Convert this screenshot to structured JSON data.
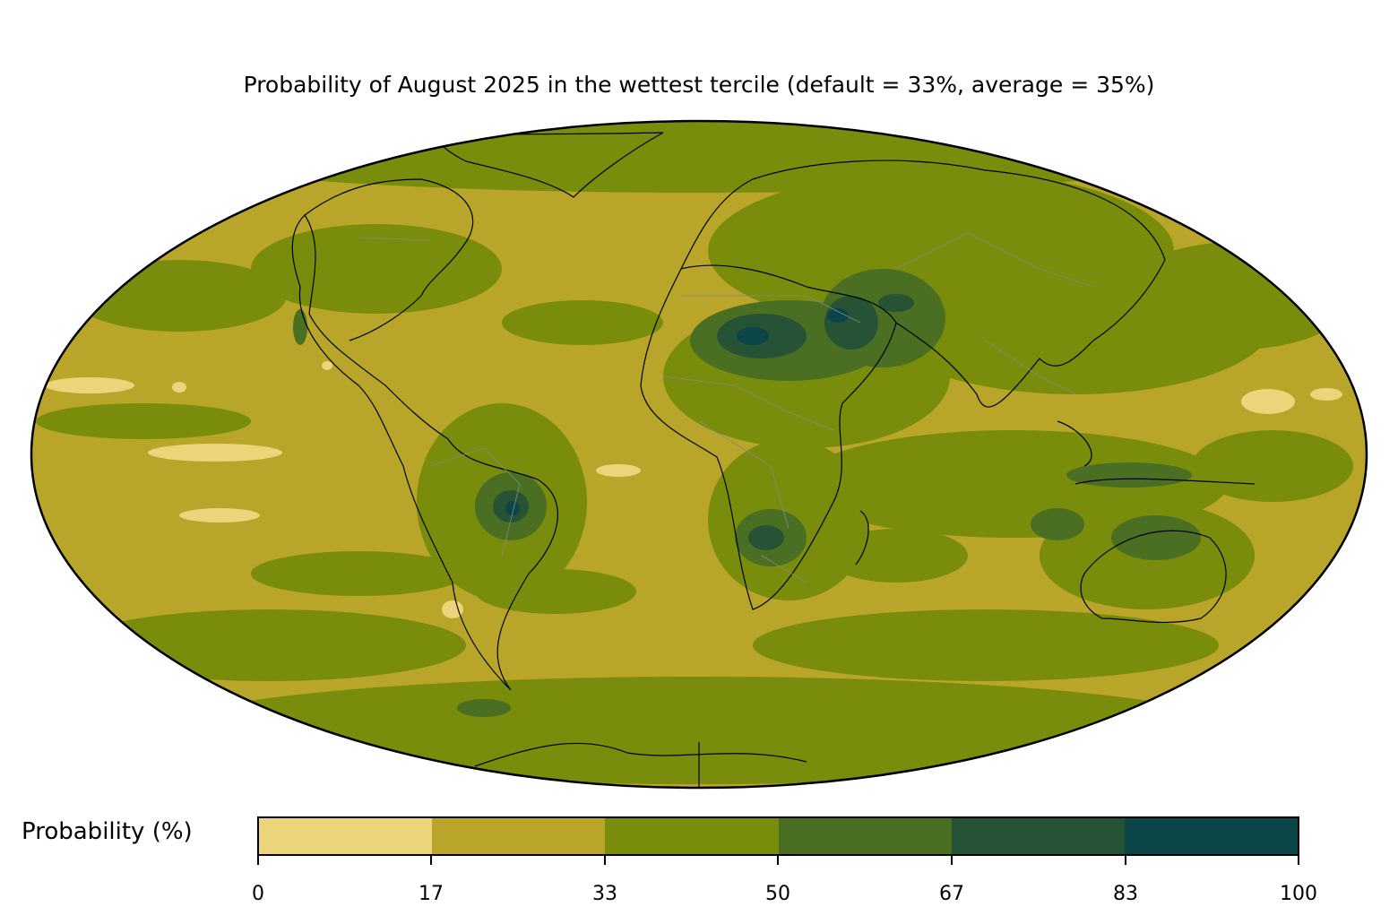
{
  "title": "Probability of August 2025 in the wettest tercile (default = 33%, average = 35%)",
  "projection": "Mollweide global",
  "colorbar": {
    "label": "Probability (%)",
    "ticks": [
      "0",
      "17",
      "33",
      "50",
      "67",
      "83",
      "100"
    ],
    "colors": [
      "#ecd47a",
      "#b8a52a",
      "#7a8c0b",
      "#4a6e22",
      "#265235",
      "#0c4548"
    ]
  },
  "features": {
    "coastline_color": "#000000",
    "border_color": "#888888"
  }
}
